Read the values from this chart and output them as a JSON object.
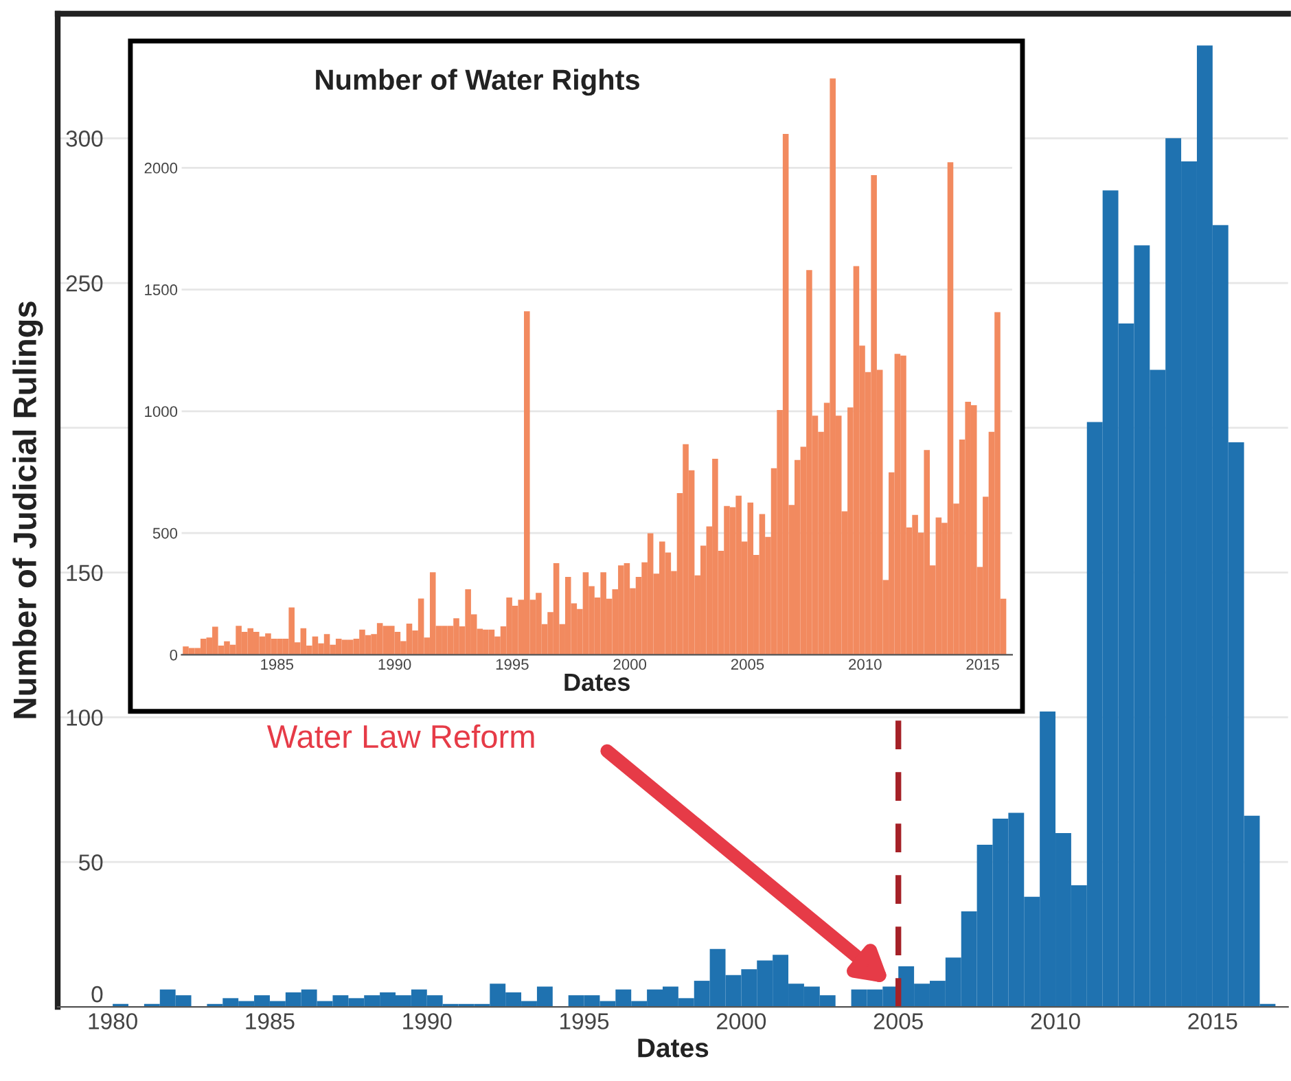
{
  "chart_data": [
    {
      "type": "histogram",
      "xlabel": "Dates",
      "ylabel": "Number of Judicial Rulings",
      "color": "#1f72b0",
      "bins": [
        1980,
        1980.5,
        1981,
        1981.5,
        1982,
        1982.5,
        1983,
        1983.5,
        1984,
        1984.5,
        1985,
        1985.5,
        1986,
        1986.5,
        1987,
        1987.5,
        1988,
        1988.5,
        1989,
        1989.5,
        1990,
        1990.5,
        1991,
        1991.5,
        1992,
        1992.5,
        1993,
        1993.5,
        1994,
        1994.5,
        1995,
        1995.5,
        1996,
        1996.5,
        1997,
        1997.5,
        1998,
        1998.5,
        1999,
        1999.5,
        2000,
        2000.5,
        2001,
        2001.5,
        2002,
        2002.5,
        2003,
        2003.5,
        2004,
        2004.5,
        2005,
        2005.5,
        2006,
        2006.5,
        2007,
        2007.5,
        2008,
        2008.5,
        2009,
        2009.5,
        2010,
        2010.5,
        2011,
        2011.5,
        2012,
        2012.5,
        2013,
        2013.5,
        2014,
        2014.5,
        2015,
        2015.5,
        2016,
        2016.5,
        2017
      ],
      "values": [
        1,
        0,
        1,
        6,
        4,
        0,
        1,
        3,
        2,
        4,
        2,
        5,
        6,
        2,
        4,
        3,
        4,
        5,
        4,
        6,
        4,
        1,
        1,
        1,
        8,
        5,
        2,
        7,
        0,
        4,
        4,
        2,
        6,
        2,
        6,
        7,
        3,
        9,
        20,
        11,
        13,
        16,
        18,
        8,
        7,
        4,
        0,
        6,
        6,
        7,
        14,
        8,
        9,
        17,
        33,
        56,
        65,
        67,
        38,
        102,
        60,
        42,
        202,
        282,
        236,
        263,
        220,
        300,
        292,
        332,
        270,
        195,
        66,
        1
      ],
      "xlim": [
        1978.25,
        2017.4
      ],
      "ylim": [
        0,
        343
      ],
      "xticks": [
        1980,
        1985,
        1990,
        1995,
        2000,
        2005,
        2010,
        2015
      ],
      "yticks": [
        0,
        50,
        100,
        150,
        {
          "value": 200,
          "label": null
        },
        250,
        300
      ],
      "grid": "y",
      "ref_lines": [
        {
          "axis": "x",
          "value": 2005,
          "color": "#a52127",
          "line_style": "dashed"
        }
      ],
      "annotations": [
        "Water Law Reform"
      ]
    },
    {
      "type": "histogram",
      "title": "Number of Water Rights",
      "xlabel": "Dates",
      "color": "#f28a5f",
      "bins": [
        1981,
        1981.25,
        1981.5,
        1981.75,
        1982,
        1982.25,
        1982.5,
        1982.75,
        1983,
        1983.25,
        1983.5,
        1983.75,
        1984,
        1984.25,
        1984.5,
        1984.75,
        1985,
        1985.25,
        1985.5,
        1985.75,
        1986,
        1986.25,
        1986.5,
        1986.75,
        1987,
        1987.25,
        1987.5,
        1987.75,
        1988,
        1988.25,
        1988.5,
        1988.75,
        1989,
        1989.25,
        1989.5,
        1989.75,
        1990,
        1990.25,
        1990.5,
        1990.75,
        1991,
        1991.25,
        1991.5,
        1991.75,
        1992,
        1992.25,
        1992.5,
        1992.75,
        1993,
        1993.25,
        1993.5,
        1993.75,
        1994,
        1994.25,
        1994.5,
        1994.75,
        1995,
        1995.25,
        1995.5,
        1995.75,
        1996,
        1996.25,
        1996.5,
        1996.75,
        1997,
        1997.25,
        1997.5,
        1997.75,
        1998,
        1998.25,
        1998.5,
        1998.75,
        1999,
        1999.25,
        1999.5,
        1999.75,
        2000,
        2000.25,
        2000.5,
        2000.75,
        2001,
        2001.25,
        2001.5,
        2001.75,
        2002,
        2002.25,
        2002.5,
        2002.75,
        2003,
        2003.25,
        2003.5,
        2003.75,
        2004,
        2004.25,
        2004.5,
        2004.75,
        2005,
        2005.25,
        2005.5,
        2005.75,
        2006,
        2006.25,
        2006.5,
        2006.75,
        2007,
        2007.25,
        2007.5,
        2007.75,
        2008,
        2008.25,
        2008.5,
        2008.75,
        2009,
        2009.25,
        2009.5,
        2009.75,
        2010,
        2010.25,
        2010.5,
        2010.75,
        2011,
        2011.25,
        2011.5,
        2011.75,
        2012,
        2012.25,
        2012.5,
        2012.75,
        2013,
        2013.25,
        2013.5,
        2013.75,
        2014,
        2014.25,
        2014.5,
        2014.75,
        2015,
        2015.25,
        2015.5,
        2015.75,
        2016
      ],
      "values": [
        34,
        28,
        28,
        66,
        71,
        115,
        38,
        55,
        41,
        119,
        94,
        109,
        94,
        75,
        88,
        66,
        66,
        66,
        194,
        51,
        109,
        38,
        75,
        47,
        85,
        41,
        66,
        62,
        62,
        66,
        103,
        81,
        85,
        130,
        119,
        119,
        94,
        56,
        128,
        100,
        231,
        71,
        339,
        119,
        119,
        119,
        150,
        117,
        269,
        166,
        107,
        103,
        103,
        75,
        117,
        235,
        201,
        226,
        1411,
        226,
        254,
        126,
        175,
        376,
        126,
        320,
        211,
        188,
        339,
        282,
        235,
        339,
        230,
        269,
        367,
        376,
        273,
        320,
        380,
        499,
        333,
        465,
        420,
        344,
        664,
        865,
        758,
        326,
        448,
        527,
        805,
        427,
        611,
        606,
        653,
        465,
        625,
        410,
        578,
        484,
        766,
        1005,
        2139,
        615,
        800,
        854,
        1580,
        982,
        916,
        1035,
        2367,
        982,
        589,
        1016,
        1596,
        1270,
        1161,
        1970,
        1170,
        307,
        749,
        1236,
        1229,
        523,
        574,
        502,
        841,
        367,
        564,
        542,
        2023,
        621,
        884,
        1039,
        1025,
        361,
        649,
        916,
        1407,
        230
      ],
      "xlim": [
        1980.95,
        2016.25
      ],
      "ylim": [
        0,
        2520
      ],
      "xticks": [
        1985,
        1990,
        1995,
        2000,
        2005,
        2010,
        2015
      ],
      "yticks": [
        0,
        500,
        1000,
        1500,
        2000
      ],
      "grid": "y"
    }
  ]
}
